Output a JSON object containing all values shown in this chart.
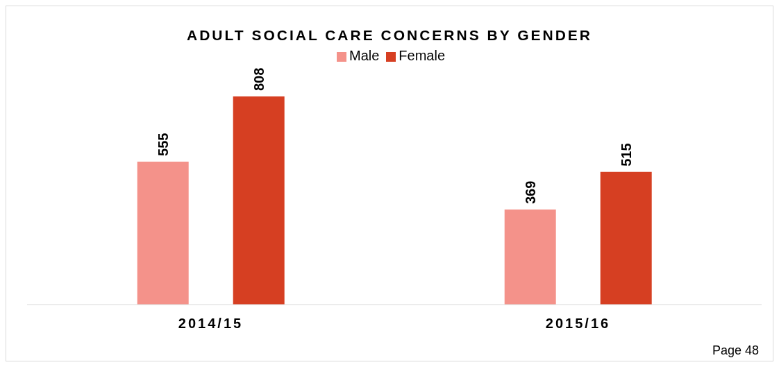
{
  "chart_data": {
    "type": "bar",
    "title": "ADULT SOCIAL CARE CONCERNS BY GENDER",
    "categories": [
      "2014/15",
      "2015/16"
    ],
    "series": [
      {
        "name": "Male",
        "color": "#f4928a",
        "values": [
          555,
          369
        ]
      },
      {
        "name": "Female",
        "color": "#d63f22",
        "values": [
          808,
          515
        ]
      }
    ],
    "data_labels": true,
    "legend": "top",
    "annotations": [
      "Page 48"
    ]
  }
}
